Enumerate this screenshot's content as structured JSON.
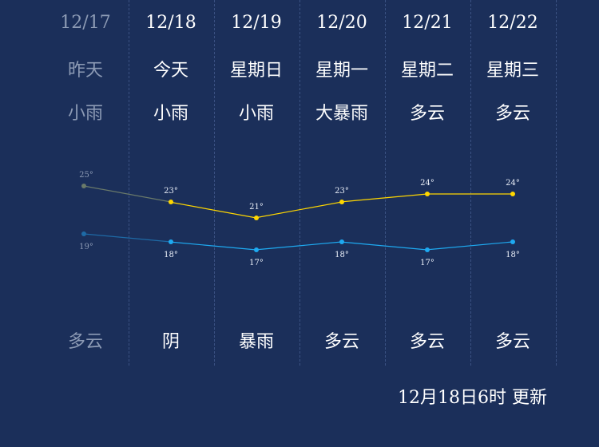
{
  "days": [
    {
      "date": "12/17",
      "weekday": "昨天",
      "day_condition": "小雨",
      "night_condition": "多云",
      "high": 25,
      "low": 19,
      "past": true
    },
    {
      "date": "12/18",
      "weekday": "今天",
      "day_condition": "小雨",
      "night_condition": "阴",
      "high": 23,
      "low": 18,
      "past": false
    },
    {
      "date": "12/19",
      "weekday": "星期日",
      "day_condition": "小雨",
      "night_condition": "暴雨",
      "high": 21,
      "low": 17,
      "past": false
    },
    {
      "date": "12/20",
      "weekday": "星期一",
      "day_condition": "大暴雨",
      "night_condition": "多云",
      "high": 23,
      "low": 18,
      "past": false
    },
    {
      "date": "12/21",
      "weekday": "星期二",
      "day_condition": "多云",
      "night_condition": "多云",
      "high": 24,
      "low": 17,
      "past": false
    },
    {
      "date": "12/22",
      "weekday": "星期三",
      "day_condition": "多云",
      "night_condition": "多云",
      "high": 24,
      "low": 18,
      "past": false
    }
  ],
  "temp_unit": "°",
  "update_text": "12月18日6时 更新",
  "colors": {
    "background": "#1b2f5a",
    "high_line": "#ffd700",
    "low_line": "#1eaaf1",
    "past_high": "#6a7a6a",
    "past_low": "#1e6aa6",
    "past_text": "#8d9bb5"
  },
  "chart_data": {
    "type": "line",
    "categories": [
      "12/17",
      "12/18",
      "12/19",
      "12/20",
      "12/21",
      "12/22"
    ],
    "series": [
      {
        "values": [
          25,
          23,
          21,
          23,
          24,
          24
        ]
      },
      {
        "values": [
          19,
          18,
          17,
          18,
          17,
          18
        ]
      }
    ]
  }
}
